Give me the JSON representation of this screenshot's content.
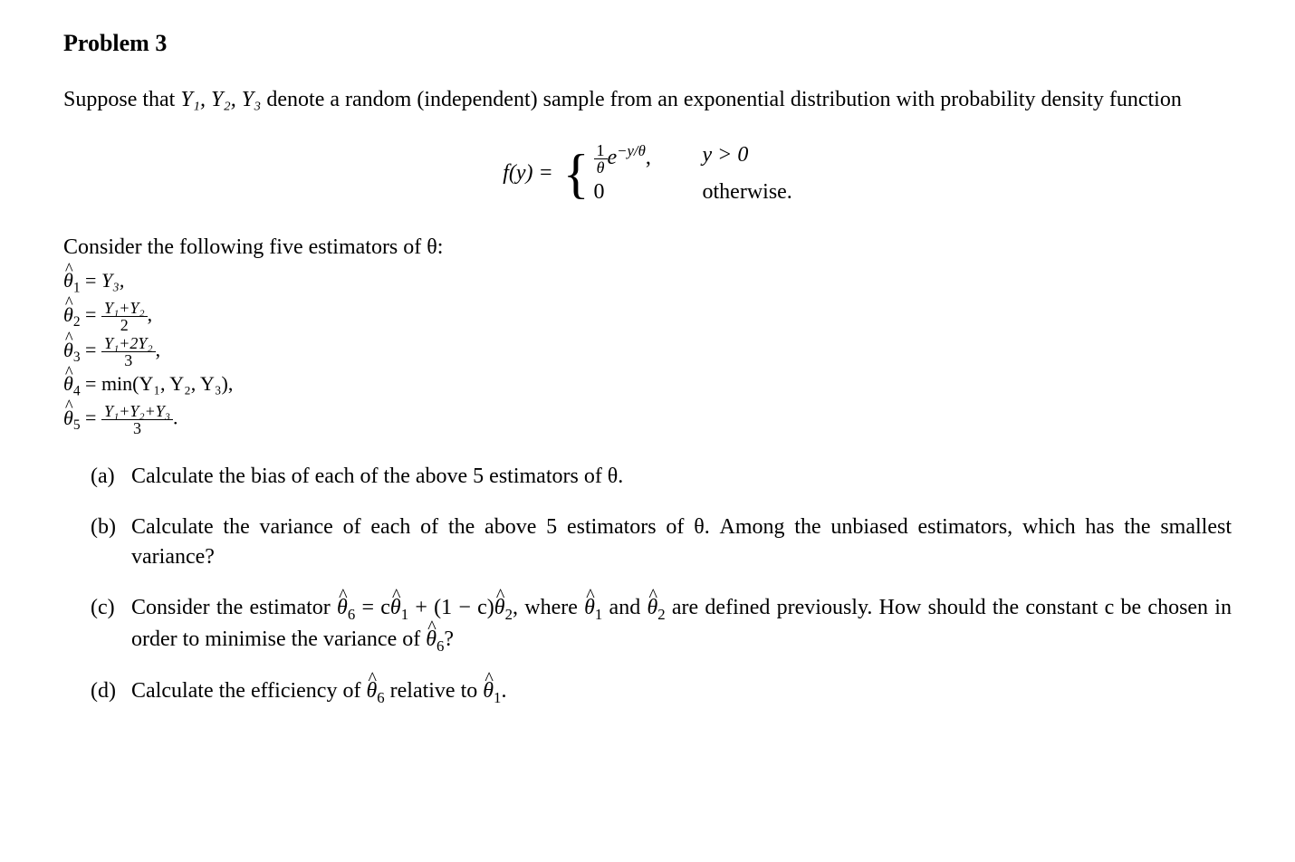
{
  "problem_title": "Problem 3",
  "intro_line1": "Suppose that ",
  "intro_vars": "Y₁, Y₂, Y₃",
  "intro_line2": " denote a random (independent) sample from an exponential distribution with probability density function",
  "pdf_lhs": "f(y) = ",
  "pdf_case1_num": "1",
  "pdf_case1_den": "θ",
  "pdf_case1_exp_pre": "e",
  "pdf_case1_exp_sup": "−y/θ",
  "pdf_case1_comma": ",",
  "pdf_case1_cond": "y > 0",
  "pdf_case2_val": "0",
  "pdf_case2_cond": "otherwise.",
  "consider_text": "Consider the following five estimators of θ:",
  "estimators": {
    "theta1_lhs": "θ",
    "theta1_sub": "1",
    "theta1_eq": " = ",
    "theta1_rhs": "Y₃,",
    "theta2_sub": "2",
    "theta2_num": "Y₁+Y₂",
    "theta2_den": "2",
    "theta3_sub": "3",
    "theta3_num": "Y₁+2Y₂",
    "theta3_den": "3",
    "theta4_sub": "4",
    "theta4_rhs": "min(Y₁, Y₂, Y₃),",
    "theta5_sub": "5",
    "theta5_num": "Y₁+Y₂+Y₃",
    "theta5_den": "3"
  },
  "parts": {
    "a_label": "(a)",
    "a_text": "Calculate the bias of each of the above 5 estimators of θ.",
    "b_label": "(b)",
    "b_text": "Calculate the variance of each of the above 5 estimators of θ. Among the unbiased estimators, which has the smallest variance?",
    "c_label": "(c)",
    "c_text_1": "Consider the estimator ",
    "c_text_2": " = c",
    "c_text_3": " + (1 − c)",
    "c_text_4": ", where ",
    "c_text_5": " and ",
    "c_text_6": " are defined previously. How should the constant c be chosen in order to minimise the variance of ",
    "c_text_7": "?",
    "c_theta6": "θ",
    "c_sub6": "6",
    "c_theta1": "θ",
    "c_sub1": "1",
    "c_theta2": "θ",
    "c_sub2": "2",
    "d_label": "(d)",
    "d_text_1": "Calculate the efficiency of ",
    "d_text_2": " relative to ",
    "d_text_3": ".",
    "d_theta6": "θ",
    "d_sub6": "6",
    "d_theta1": "θ",
    "d_sub1": "1"
  },
  "colors": {
    "background": "#ffffff",
    "text": "#000000"
  },
  "fonts": {
    "family": "Times New Roman",
    "title_size": 26,
    "body_size": 24,
    "estimator_size": 22,
    "frac_size": 18
  }
}
